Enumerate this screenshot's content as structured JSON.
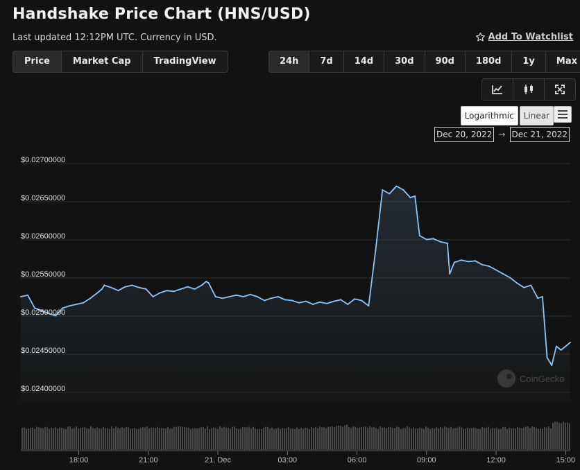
{
  "header": {
    "title": "Handshake Price Chart (HNS/USD)",
    "subtitle": "Last updated 12:12PM UTC. Currency in USD.",
    "watchlist_label": "Add To Watchlist"
  },
  "tabs": [
    {
      "label": "Price",
      "active": true
    },
    {
      "label": "Market Cap",
      "active": false
    },
    {
      "label": "TradingView",
      "active": false
    }
  ],
  "periods": [
    "24h",
    "7d",
    "14d",
    "30d",
    "90d",
    "180d",
    "1y",
    "Max"
  ],
  "active_period": "24h",
  "tools": [
    {
      "icon": "line-chart-icon"
    },
    {
      "icon": "candlestick-icon"
    },
    {
      "icon": "fullscreen-icon"
    }
  ],
  "scale": {
    "log_label": "Logarithmic",
    "linear_label": "Linear",
    "active": "linear"
  },
  "date_range": {
    "from": "Dec 20, 2022",
    "to": "Dec 21, 2022",
    "arrow": "→"
  },
  "watermark": "CoinGecko",
  "colors": {
    "line": "#8dc6f7",
    "background": "#121212",
    "volume": "#555555",
    "grid": "#2c2c2c"
  },
  "chart_data": {
    "type": "area",
    "y_tick_labels": [
      "$0.02700000",
      "$0.02650000",
      "$0.02600000",
      "$0.02550000",
      "$0.02500000",
      "$0.02450000",
      "$0.02400000"
    ],
    "y_ticks": [
      0.027,
      0.0265,
      0.026,
      0.0255,
      0.025,
      0.0245,
      0.024
    ],
    "ylim": [
      0.024,
      0.027
    ],
    "x_tick_labels": [
      "18:00",
      "21:00",
      "21. Dec",
      "03:00",
      "06:00",
      "09:00",
      "12:00",
      "15:00"
    ],
    "x_ticks": [
      2.5,
      5.5,
      8.5,
      11.5,
      14.5,
      17.5,
      20.5,
      23.5
    ],
    "xlim": [
      0,
      23.7
    ],
    "grid": true,
    "series": [
      {
        "x": [
          0,
          0.3,
          0.6,
          0.9,
          1.2,
          1.5,
          1.8,
          2.1,
          2.4,
          2.7,
          3.0,
          3.3,
          3.5,
          3.6,
          3.9,
          4.2,
          4.5,
          4.8,
          5.1,
          5.4,
          5.7,
          6.0,
          6.3,
          6.6,
          6.9,
          7.2,
          7.5,
          7.8,
          8.0,
          8.1,
          8.4,
          8.7,
          9.0,
          9.3,
          9.6,
          9.9,
          10.2,
          10.5,
          10.8,
          11.1,
          11.4,
          11.7,
          12.0,
          12.3,
          12.6,
          12.9,
          13.2,
          13.5,
          13.8,
          14.1,
          14.4,
          14.7,
          15.0,
          15.3,
          15.6,
          15.9,
          16.2,
          16.5,
          16.8,
          17.0,
          17.2,
          17.5,
          17.8,
          18.1,
          18.4,
          18.5,
          18.7,
          19.0,
          19.3,
          19.6,
          19.9,
          20.2,
          20.5,
          20.8,
          21.1,
          21.4,
          21.7,
          22.0,
          22.3,
          22.5,
          22.7,
          22.9,
          23.1,
          23.3,
          23.5,
          23.7
        ],
        "values": [
          0.0252,
          0.02522,
          0.02505,
          0.02502,
          0.02498,
          0.02495,
          0.02505,
          0.02508,
          0.0251,
          0.02512,
          0.02518,
          0.02525,
          0.0253,
          0.02535,
          0.02532,
          0.02528,
          0.02533,
          0.02535,
          0.02532,
          0.0253,
          0.0252,
          0.02525,
          0.02528,
          0.02527,
          0.0253,
          0.02533,
          0.0253,
          0.02535,
          0.0254,
          0.02538,
          0.0252,
          0.02518,
          0.0252,
          0.02522,
          0.0252,
          0.02523,
          0.0252,
          0.02515,
          0.02518,
          0.0252,
          0.02516,
          0.02515,
          0.02512,
          0.02514,
          0.0251,
          0.02513,
          0.02511,
          0.02514,
          0.02516,
          0.0251,
          0.02517,
          0.02515,
          0.02508,
          0.0258,
          0.0266,
          0.02655,
          0.02665,
          0.0266,
          0.0265,
          0.02652,
          0.026,
          0.02595,
          0.02596,
          0.02592,
          0.0259,
          0.0255,
          0.02565,
          0.02568,
          0.02566,
          0.02567,
          0.02562,
          0.0256,
          0.02555,
          0.0255,
          0.02545,
          0.02538,
          0.02532,
          0.02535,
          0.02518,
          0.0252,
          0.0244,
          0.0243,
          0.02455,
          0.0245,
          0.02455,
          0.0246
        ]
      }
    ]
  }
}
